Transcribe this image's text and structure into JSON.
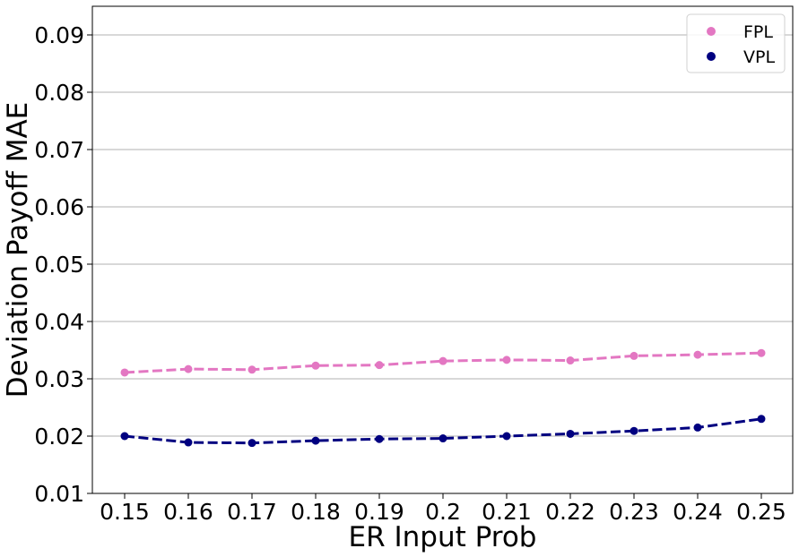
{
  "chart_data": {
    "type": "line",
    "title": "",
    "xlabel": "ER Input Prob",
    "ylabel": "Deviation Payoff MAE",
    "categories": [
      "0.15",
      "0.16",
      "0.17",
      "0.18",
      "0.19",
      "0.2",
      "0.21",
      "0.22",
      "0.23",
      "0.24",
      "0.25"
    ],
    "ylim": [
      0.01,
      0.095
    ],
    "yticks": [
      "0.01",
      "0.02",
      "0.03",
      "0.04",
      "0.05",
      "0.06",
      "0.07",
      "0.08",
      "0.09"
    ],
    "grid": "horizontal",
    "legend_position": "top-right",
    "series": [
      {
        "name": "FPL",
        "color": "#e377c2",
        "values": [
          0.0311,
          0.0317,
          0.0316,
          0.0323,
          0.0324,
          0.0331,
          0.0333,
          0.0332,
          0.034,
          0.0342,
          0.0345
        ]
      },
      {
        "name": "VPL",
        "color": "#000080",
        "values": [
          0.02,
          0.0189,
          0.0188,
          0.0192,
          0.0195,
          0.0196,
          0.02,
          0.0204,
          0.0209,
          0.0215,
          0.023
        ]
      }
    ]
  }
}
